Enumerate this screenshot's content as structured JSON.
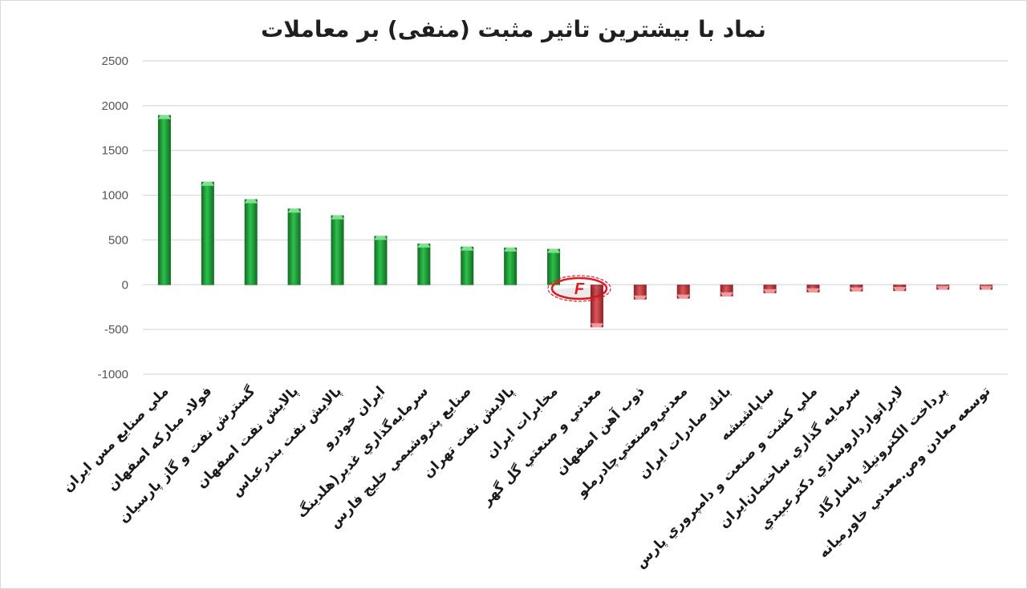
{
  "chart_data": {
    "type": "bar",
    "title": "نماد با بیشترین تاثیر مثبت (منفی) بر معاملات",
    "xlabel": "",
    "ylabel": "",
    "ylim": [
      -1000,
      2500
    ],
    "yticks": [
      2500,
      2000,
      1500,
      1000,
      500,
      0,
      -500,
      -1000
    ],
    "yticklabels": [
      "2500",
      "2000",
      "1500",
      "1000",
      "500",
      "0",
      "-500",
      "-1000"
    ],
    "grid": true,
    "legend": "none",
    "categories": [
      "ملي صنايع مس ايران",
      "فولاد مباركه اصفهان",
      "گسترش نفت و گاز پارسيان",
      "پالايش نفت اصفهان",
      "پالايش نفت بندرعباس",
      "ايران خودرو",
      "سرمايه‌گذاري غدير(هلدينگ",
      "صنايع پتروشيمي خليج فارس",
      "پالايش نفت تهران",
      "مخابرات ايران",
      "معدني و صنعتي گل گهر",
      "ذوب آهن اصفهان",
      "معدني‌وصنعتي‌چادرملو",
      "بانك صادرات ايران",
      "ساپاشيشه",
      "ملي كشت و صنعت و دامپروري پارس",
      "سرمايه گذاري ساختمان‌ايران",
      "لابراتوارداروسازي دكترعبيدي",
      "پرداخت الكترونيك پاسارگاد",
      "توسعه معادن وص.معدني خاورميانه"
    ],
    "values": [
      1895,
      1150,
      955,
      850,
      775,
      545,
      460,
      425,
      415,
      400,
      -475,
      -165,
      -155,
      -130,
      -95,
      -85,
      -75,
      -70,
      -55,
      -55
    ],
    "colors": {
      "positive": "#21a03c",
      "positive_dark": "#0f6b22",
      "positive_light": "#7fe08e",
      "negative": "#c9454b",
      "negative_dark": "#8e1f24",
      "negative_light": "#f09a9d",
      "grid": "#d9d9d9",
      "logo": "#e21b23"
    }
  },
  "watermark": {
    "icon": "f-logo-icon",
    "text": "F"
  }
}
